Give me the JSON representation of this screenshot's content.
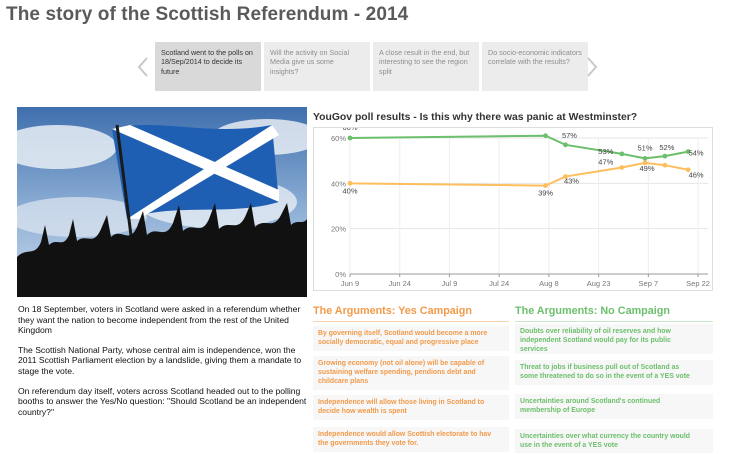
{
  "page": {
    "title": "The story of the Scottish Referendum - 2014"
  },
  "story_nav": {
    "prev_icon": "chevron-left-icon",
    "next_icon": "chevron-right-icon",
    "tabs": [
      {
        "text": "Scotland went to the polls on 18/Sep/2014 to decide its future",
        "active": true
      },
      {
        "text": "Will the activity on Social Media give us some insights?",
        "active": false
      },
      {
        "text": "A close result in the end, but interesting to see the region split",
        "active": false
      },
      {
        "text": "Do socio-economic indicators correlate with the results?",
        "active": false
      }
    ]
  },
  "hero_image": {
    "subject": "crowd-with-scottish-saltire-flag"
  },
  "body": {
    "paragraphs": [
      "On 18 September, voters in Scotland were asked in a referendum whether they want the nation to become independent from the rest of the United Kingdom",
      "The Scottish National Party, whose central aim is independence, won the 2011 Scottish Parliament election by a landslide, giving them a mandate to stage the vote.",
      "On referendum day itself, voters across Scotland headed out to the polling booths to answer the Yes/No question: \"Should Scotland be an independent country?\""
    ]
  },
  "chart_title": "YouGov poll results - Is this why there was panic at Westminster?",
  "chart_data": {
    "type": "line",
    "title": "YouGov poll results - Is this why there was panic at Westminster?",
    "xlabel": "",
    "ylabel": "",
    "ylim": [
      0,
      60
    ],
    "y_ticks": [
      "0%",
      "20%",
      "40%",
      "60%"
    ],
    "x_ticks": [
      "Jun 9",
      "Jun 24",
      "Jul 9",
      "Jul 24",
      "Aug 8",
      "Aug 23",
      "Sep 7",
      "Sep 22"
    ],
    "x_range": [
      "2014-06-09",
      "2014-09-25"
    ],
    "grid": true,
    "series": [
      {
        "color": "#6cbf6c",
        "points": [
          {
            "x": "2014-06-09",
            "y": 60,
            "label": "60%"
          },
          {
            "x": "2014-08-07",
            "y": 61,
            "label": "61%"
          },
          {
            "x": "2014-08-13",
            "y": 57,
            "label": "57%"
          },
          {
            "x": "2014-08-30",
            "y": 53,
            "label": "53%"
          },
          {
            "x": "2014-09-06",
            "y": 51,
            "label": "51%"
          },
          {
            "x": "2014-09-12",
            "y": 52,
            "label": "52%"
          },
          {
            "x": "2014-09-19",
            "y": 54,
            "label": "54%"
          }
        ]
      },
      {
        "color": "#fdbf5e",
        "points": [
          {
            "x": "2014-06-09",
            "y": 40,
            "label": "40%"
          },
          {
            "x": "2014-08-07",
            "y": 39,
            "label": "39%"
          },
          {
            "x": "2014-08-13",
            "y": 43,
            "label": "43%"
          },
          {
            "x": "2014-08-30",
            "y": 47,
            "label": "47%"
          },
          {
            "x": "2014-09-06",
            "y": 49,
            "label": "49%"
          },
          {
            "x": "2014-09-12",
            "y": 48,
            "label": ""
          },
          {
            "x": "2014-09-19",
            "y": 46,
            "label": "46%"
          }
        ]
      }
    ]
  },
  "arguments": {
    "yes": {
      "title": "The Arguments: Yes Campaign",
      "color": "#f29a4a",
      "items": [
        [
          "By governing itself, Scotland would become a more",
          "socially democratic, equal and progressive place"
        ],
        [
          "Growing economy (not oil alone) will be capable of",
          "sustaining welfare spending, pendions debt and",
          "childcare plans"
        ],
        [
          "Independence will allow those living in Scotland to",
          "decide how wealth is spent"
        ],
        [
          "Independence would allow Scottish electorate to hav",
          "the governments they vote for."
        ]
      ]
    },
    "no": {
      "title": "The Arguments: No Campaign",
      "color": "#6cbf6c",
      "items": [
        [
          "Doubts over reliability of oil reserves and how",
          "independent Scotland would pay for its public",
          "services"
        ],
        [
          "Threat to jobs if business pull out of Scotland as",
          "some threatened to do so in the event of a YES vote"
        ],
        [
          "Uncertainties around Scotland's continued",
          "membership of Europe"
        ],
        [
          "Uncertainties over what currency the country would",
          "use in the event of a YES vote"
        ]
      ]
    }
  }
}
